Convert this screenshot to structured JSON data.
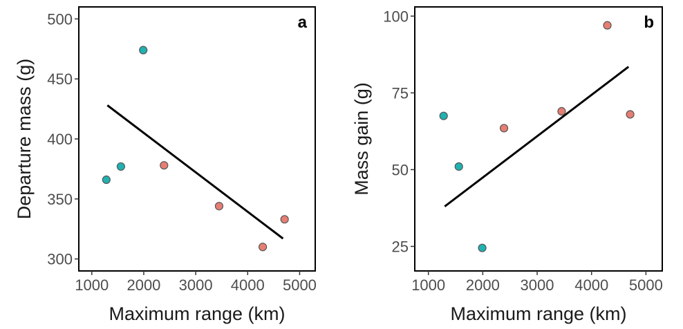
{
  "colors": {
    "teal": "#20b2b2",
    "salmon": "#e67e73",
    "line": "#000000",
    "frame": "#000000"
  },
  "chart_data": [
    {
      "type": "scatter",
      "panel": "a",
      "xlabel": "Maximum range (km)",
      "ylabel": "Departure mass (g)",
      "xlim": [
        750,
        5300
      ],
      "ylim": [
        290,
        510
      ],
      "xticks": [
        1000,
        2000,
        3000,
        4000,
        5000
      ],
      "yticks": [
        300,
        350,
        400,
        450,
        500
      ],
      "grid": false,
      "series": [
        {
          "color": "teal",
          "points": [
            [
              1280,
              366
            ],
            [
              1560,
              377
            ],
            [
              1990,
              474
            ]
          ]
        },
        {
          "color": "salmon",
          "points": [
            [
              2390,
              378
            ],
            [
              3450,
              344
            ],
            [
              4290,
              310
            ],
            [
              4710,
              333
            ]
          ]
        }
      ],
      "trend_line": {
        "x": [
          1300,
          4680
        ],
        "y": [
          428,
          317
        ]
      }
    },
    {
      "type": "scatter",
      "panel": "b",
      "xlabel": "Maximum range (km)",
      "ylabel": "Mass gain (g)",
      "xlim": [
        750,
        5300
      ],
      "ylim": [
        17,
        103
      ],
      "xticks": [
        1000,
        2000,
        3000,
        4000,
        5000
      ],
      "yticks": [
        25,
        50,
        75,
        100
      ],
      "grid": false,
      "series": [
        {
          "color": "teal",
          "points": [
            [
              1280,
              67.5
            ],
            [
              1560,
              51
            ],
            [
              1990,
              24.5
            ]
          ]
        },
        {
          "color": "salmon",
          "points": [
            [
              2390,
              63.5
            ],
            [
              3450,
              69
            ],
            [
              4290,
              97
            ],
            [
              4710,
              68
            ]
          ]
        }
      ],
      "trend_line": {
        "x": [
          1300,
          4680
        ],
        "y": [
          38,
          83.5
        ]
      }
    }
  ]
}
